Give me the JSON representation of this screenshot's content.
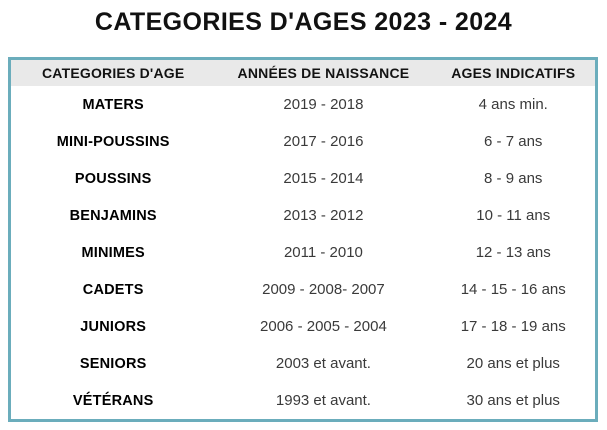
{
  "page": {
    "title": "CATEGORIES D'AGES 2023 - 2024"
  },
  "colors": {
    "table_border": "#6badbc",
    "header_background": "#e9e9e9",
    "title_text": "#111111",
    "category_text": "#000000",
    "data_text": "#3a3a3a"
  },
  "table": {
    "headers": [
      "CATEGORIES D'AGE",
      "ANNÉES DE NAISSANCE",
      "AGES INDICATIFS"
    ],
    "rows": [
      {
        "category": "MATERS",
        "years": "2019 - 2018",
        "ages": "4 ans min."
      },
      {
        "category": "MINI-POUSSINS",
        "years": "2017 - 2016",
        "ages": "6 - 7 ans"
      },
      {
        "category": "POUSSINS",
        "years": "2015 - 2014",
        "ages": "8 - 9 ans"
      },
      {
        "category": "BENJAMINS",
        "years": "2013 - 2012",
        "ages": "10 - 11 ans"
      },
      {
        "category": "MINIMES",
        "years": "2011 - 2010",
        "ages": "12 - 13 ans"
      },
      {
        "category": "CADETS",
        "years": "2009 - 2008- 2007",
        "ages": "14 - 15 - 16 ans"
      },
      {
        "category": "JUNIORS",
        "years": "2006 - 2005 - 2004",
        "ages": "17 - 18 - 19 ans"
      },
      {
        "category": "SENIORS",
        "years": "2003 et avant.",
        "ages": "20 ans et plus"
      },
      {
        "category": "VÉTÉRANS",
        "years": "1993 et avant.",
        "ages": "30 ans et plus"
      }
    ]
  }
}
